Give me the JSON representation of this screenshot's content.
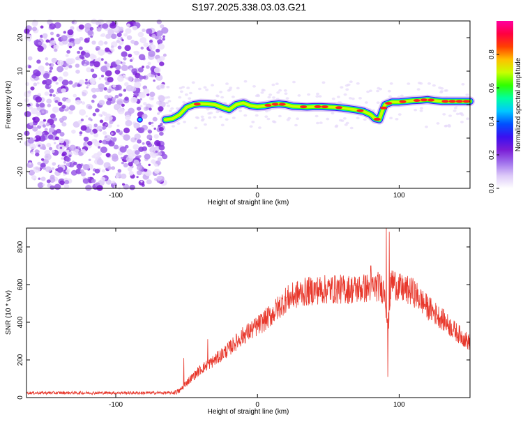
{
  "title": "S197.2025.338.03.03.G21",
  "chart_data": [
    {
      "type": "heatmap",
      "name": "spectrogram",
      "xlabel": "Height of straight line (km)",
      "ylabel": "Frequency (Hz)",
      "xlim": [
        -163,
        150
      ],
      "ylim": [
        -25,
        25
      ],
      "x_ticks": [
        -100,
        0,
        100
      ],
      "y_ticks": [
        20,
        10,
        0,
        -10,
        -20
      ],
      "noise_region_x": [
        -163,
        -65
      ],
      "ridge": {
        "x": [
          -65,
          -60,
          -55,
          -50,
          -45,
          -40,
          -35,
          -30,
          -25,
          -20,
          -15,
          -10,
          -5,
          0,
          5,
          10,
          15,
          20,
          25,
          30,
          35,
          40,
          45,
          50,
          55,
          60,
          65,
          70,
          75,
          80,
          83,
          86,
          88,
          90,
          95,
          100,
          105,
          110,
          115,
          120,
          125,
          130,
          135,
          140,
          145,
          150
        ],
        "y": [
          -4.5,
          -4.2,
          -3,
          -0.8,
          0,
          0.3,
          0.2,
          0,
          -0.8,
          -1.5,
          0,
          0.5,
          -0.3,
          -0.6,
          -0.4,
          0,
          0.2,
          0,
          -0.5,
          -0.6,
          -0.7,
          -0.6,
          -0.6,
          -0.7,
          -0.8,
          -1,
          -1.3,
          -1.6,
          -2,
          -3,
          -4.2,
          -4.5,
          -2,
          0,
          0.8,
          0.8,
          1,
          1.2,
          1.3,
          1.5,
          1.2,
          1,
          1,
          1,
          1,
          1
        ]
      },
      "colorbar": {
        "label": "Normalized spectral amplitude",
        "ticks": [
          "0.0",
          "0.2",
          "0.4",
          "0.6",
          "0.8"
        ],
        "tick_values": [
          0,
          0.2,
          0.4,
          0.6,
          0.8
        ],
        "range": [
          0,
          1
        ],
        "colors": [
          "#ffffff",
          "#dcc8f8",
          "#a070ec",
          "#7a1cd6",
          "#3a10f0",
          "#0050ff",
          "#00c8ff",
          "#00ffa0",
          "#30ff00",
          "#c8ff00",
          "#ffc000",
          "#ff4000",
          "#ff0040",
          "#ff00a0"
        ]
      }
    },
    {
      "type": "line",
      "name": "snr",
      "xlabel": "Height of straight line (km)",
      "ylabel": "SNR (10 * v/v)",
      "xlim": [
        -163,
        150
      ],
      "ylim": [
        0,
        900
      ],
      "x_ticks": [
        -100,
        0,
        100
      ],
      "y_ticks": [
        0,
        200,
        400,
        600,
        800
      ],
      "color": "#e8382c",
      "envelope": {
        "x": [
          -163,
          -120,
          -80,
          -60,
          -55,
          -50,
          -40,
          -30,
          -20,
          -10,
          0,
          10,
          20,
          30,
          40,
          50,
          60,
          70,
          80,
          85,
          90,
          92,
          94,
          95,
          100,
          110,
          120,
          130,
          140,
          150
        ],
        "y": [
          25,
          25,
          25,
          25,
          35,
          80,
          150,
          200,
          260,
          330,
          380,
          440,
          520,
          555,
          570,
          575,
          575,
          575,
          585,
          590,
          570,
          350,
          580,
          620,
          580,
          560,
          480,
          420,
          350,
          290
        ]
      },
      "spikes": [
        {
          "x": -52,
          "y": 210
        },
        {
          "x": -35,
          "y": 310
        },
        {
          "x": 80,
          "y": 700
        },
        {
          "x": 91,
          "y": 900
        },
        {
          "x": 92,
          "y": 110
        },
        {
          "x": 93,
          "y": 880
        }
      ]
    }
  ]
}
